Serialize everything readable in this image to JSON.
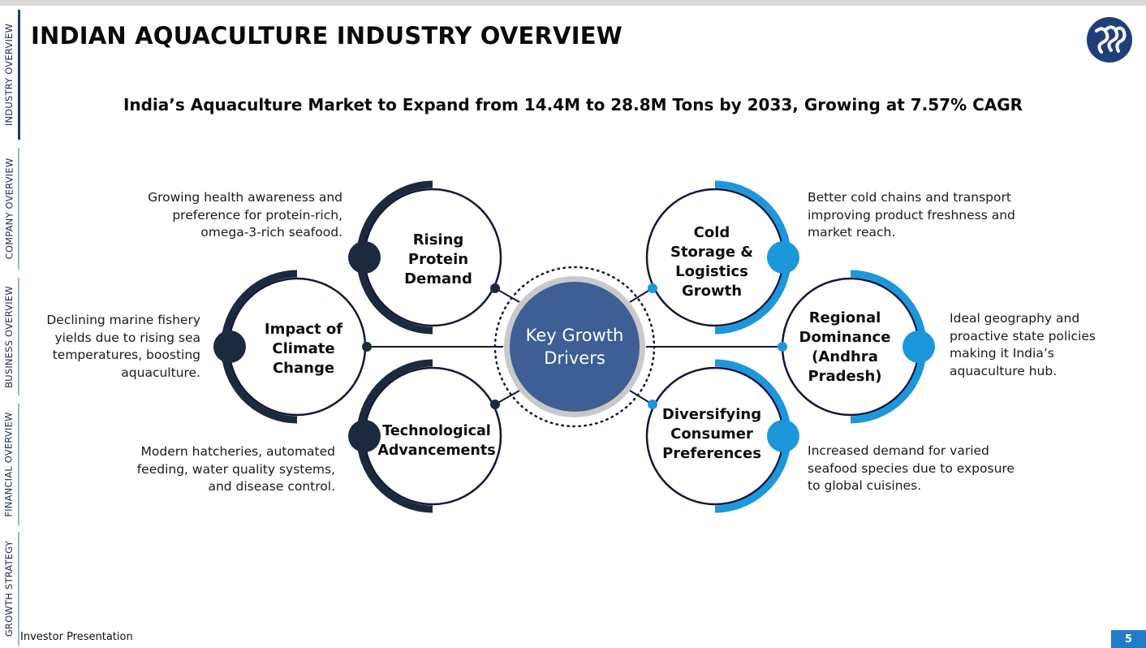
{
  "sidebar": {
    "items": [
      "INDUSTRY OVERVIEW",
      "COMPANY OVERVIEW",
      "BUSINESS OVERVIEW",
      "FINANCIAL OVERVIEW",
      "GROWTH STRATEGY"
    ],
    "active_index": 0
  },
  "title": "INDIAN AQUACULTURE INDUSTRY OVERVIEW",
  "subtitle": "India’s Aquaculture Market to Expand from 14.4M to 28.8M Tons by 2033, Growing at 7.57% CAGR",
  "logo_icon": "company-logo",
  "center": {
    "label": "Key Growth Drivers"
  },
  "drivers": [
    {
      "label": "Rising Protein Demand",
      "description": "Growing health awareness and preference for protein-rich, omega-3-rich seafood.",
      "color": "#1b2a3c"
    },
    {
      "label": "Impact of Climate Change",
      "description": "Declining marine fishery yields due to rising sea temperatures, boosting aquaculture.",
      "color": "#1b2a3c"
    },
    {
      "label": "Technological Advancements",
      "description": "Modern hatcheries, automated feeding, water quality systems, and disease control.",
      "color": "#1b2a3c"
    },
    {
      "label": "Cold Storage & Logistics Growth",
      "description": "Better cold chains and transport improving product freshness and market reach.",
      "color": "#1d97dc"
    },
    {
      "label": "Regional Dominance (Andhra Pradesh)",
      "description": "Ideal geography and proactive state policies making it India’s aquaculture hub.",
      "color": "#1d97dc"
    },
    {
      "label": "Diversifying Consumer Preferences",
      "description": "Increased demand for varied seafood species due to exposure to global cuisines.",
      "color": "#1d97dc"
    }
  ],
  "colors": {
    "dark": "#1b2a3c",
    "blue": "#1d97dc",
    "center_fill": "#3d5f95",
    "ring": "#c9c9c9",
    "navy_line": "#14163a"
  },
  "footer": {
    "text": "Investor Presentation",
    "page": "5"
  }
}
